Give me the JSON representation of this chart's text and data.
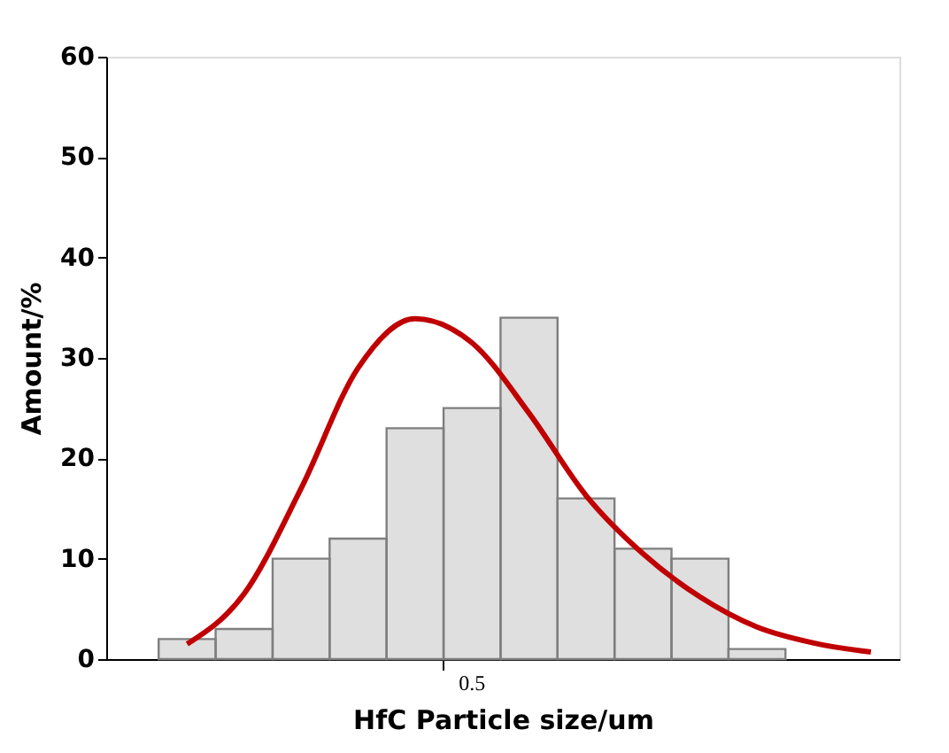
{
  "chart_data": {
    "type": "bar",
    "xlabel": "HfC    Particle size/um",
    "ylabel": "Amount/%",
    "categories": [
      null,
      null,
      null,
      null,
      null,
      "0.5",
      null,
      null,
      null,
      null,
      null,
      null,
      null
    ],
    "values": [
      2,
      3,
      10,
      12,
      23,
      25,
      34,
      16,
      11,
      10,
      1,
      null,
      null
    ],
    "color": "#7f7f7f",
    "series": [
      {
        "type": "line",
        "color": "#c00000",
        "values": [
          1.5,
          6.5,
          17,
          29,
          33.9,
          31.5,
          24.5,
          16.3,
          10.5,
          6.2,
          3.2,
          1.6,
          0.7
        ]
      }
    ],
    "ylim": [
      0,
      60
    ],
    "yticks": [
      0,
      10,
      20,
      30,
      40,
      50,
      60
    ],
    "grid": false
  }
}
